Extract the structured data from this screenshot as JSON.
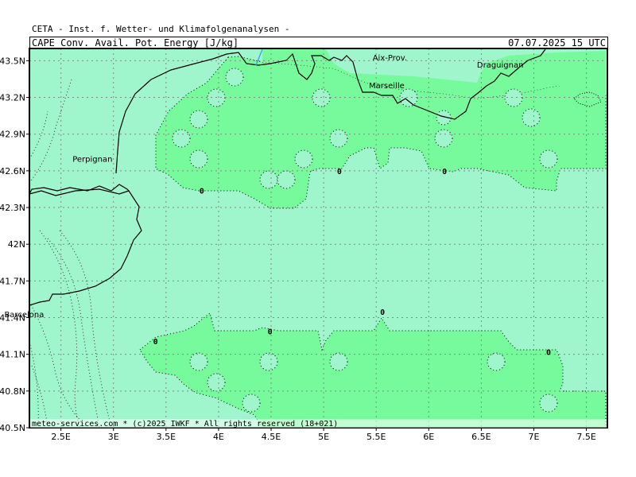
{
  "header": {
    "org": "CETA - Inst. f. Wetter- und Klimafolgenanalysen -",
    "title": "CAPE_Conv._Avail._Pot._Energy_[J/kg]",
    "datetime": "07.07.2025 15 UTC"
  },
  "footer": "meteo-services.com * (c)2025 IWKF * All rights reserved (18+021)",
  "axes": {
    "lon_ticks": [
      "2.5E",
      "3E",
      "3.5E",
      "4E",
      "4.5E",
      "5E",
      "5.5E",
      "6E",
      "6.5E",
      "7E",
      "7.5E"
    ],
    "lat_ticks": [
      "43.5N",
      "43.2N",
      "42.9N",
      "42.6N",
      "42.3N",
      "42N",
      "41.7N",
      "41.4N",
      "41.1N",
      "40.8N",
      "40.5N"
    ]
  },
  "places": [
    {
      "name": "Aix-Prov.",
      "lon": 5.63,
      "lat": 43.53
    },
    {
      "name": "Draguignan",
      "lon": 6.68,
      "lat": 43.47
    },
    {
      "name": "Marseille",
      "lon": 5.6,
      "lat": 43.3
    },
    {
      "name": "Perpignan",
      "lon": 2.8,
      "lat": 42.7
    },
    {
      "name": "Barcelona",
      "lon": 2.15,
      "lat": 41.43
    }
  ],
  "contour_labels": [
    {
      "value": "0",
      "lon": 3.84,
      "lat": 42.44
    },
    {
      "value": "0",
      "lon": 5.15,
      "lat": 42.6
    },
    {
      "value": "0",
      "lon": 6.15,
      "lat": 42.6
    },
    {
      "value": "0",
      "lon": 5.56,
      "lat": 41.45
    },
    {
      "value": "0",
      "lon": 4.49,
      "lat": 41.29
    },
    {
      "value": "0",
      "lon": 3.4,
      "lat": 41.21
    },
    {
      "value": "0",
      "lon": 7.14,
      "lat": 41.12
    }
  ],
  "colors": {
    "ocean": "#9ff5cc",
    "cape_zone": "#77fa9c",
    "land_top": "#9ff5cc",
    "coast": "#000000",
    "grid": "#888888",
    "river": "#3399ff"
  },
  "chart_data": {
    "type": "map",
    "variable": "CAPE_Conv._Avail._Pot._Energy_[J/kg]",
    "valid_time": "07.07.2025 15 UTC",
    "lon_range": [
      2.2,
      7.7
    ],
    "lat_range": [
      40.5,
      43.6
    ],
    "grid_step_lon": 0.5,
    "grid_step_lat": 0.3,
    "contour_levels": [
      0
    ]
  }
}
